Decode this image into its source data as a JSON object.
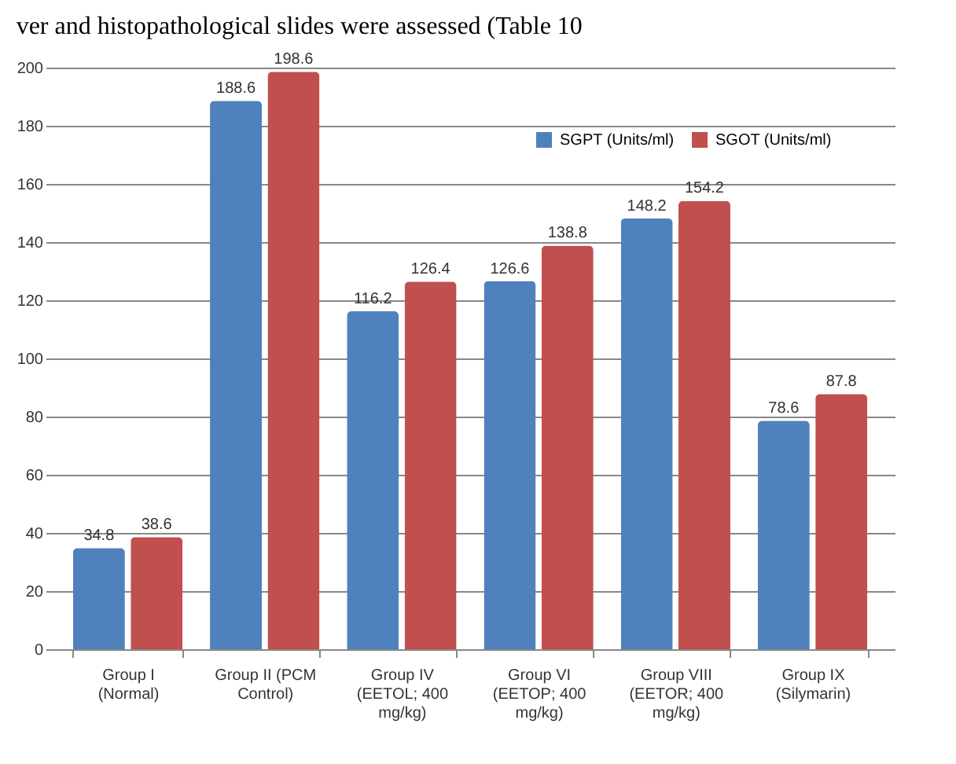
{
  "chart_data": {
    "type": "bar",
    "annotations": [
      "ver and histopathological slides were assessed (Table 10"
    ],
    "categories": [
      "Group I (Normal)",
      "Group II (PCM Control)",
      "Group IV (EETOL; 400 mg/kg)",
      "Group VI (EETOP; 400 mg/kg)",
      "Group VIII (EETOR; 400 mg/kg)",
      "Group IX (Silymarin)"
    ],
    "series": [
      {
        "name": "SGPT (Units/ml)",
        "color": "#4f81bd",
        "values": [
          34.8,
          188.6,
          116.2,
          126.6,
          148.2,
          78.6
        ]
      },
      {
        "name": "SGOT (Units/ml)",
        "color": "#c0504d",
        "values": [
          38.6,
          198.6,
          126.4,
          138.8,
          154.2,
          87.8
        ]
      }
    ],
    "ylim": [
      0,
      200
    ],
    "yticks": [
      0,
      20,
      40,
      60,
      80,
      100,
      120,
      140,
      160,
      180,
      200
    ],
    "grid": "y",
    "legend": "top right",
    "data_labels": true
  }
}
